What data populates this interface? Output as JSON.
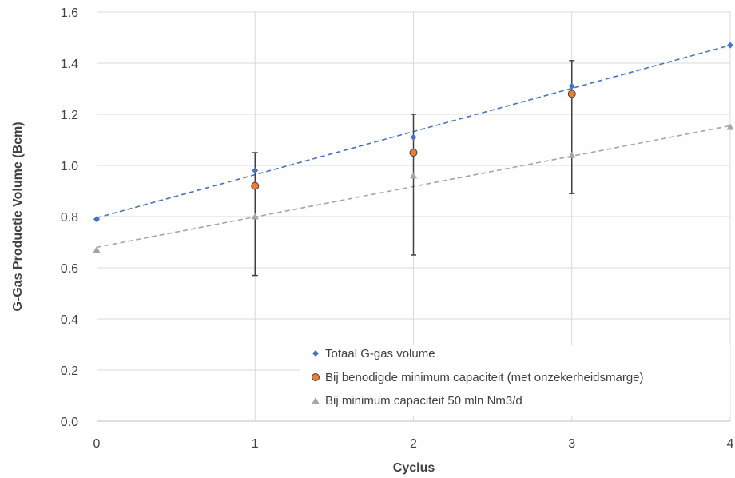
{
  "chart_data": {
    "type": "scatter",
    "title": "",
    "xlabel": "Cyclus",
    "ylabel": "G-Gas Productie Volume (Bcm)",
    "xlim": [
      0,
      4
    ],
    "ylim": [
      0,
      1.6
    ],
    "x_ticks": [
      0,
      1,
      2,
      3,
      4
    ],
    "y_ticks": [
      0.0,
      0.2,
      0.4,
      0.6,
      0.8,
      1.0,
      1.2,
      1.4,
      1.6
    ],
    "x_tick_labels": [
      "0",
      "1",
      "2",
      "3",
      "4"
    ],
    "y_tick_labels": [
      "0.0",
      "0.2",
      "0.4",
      "0.6",
      "0.8",
      "1.0",
      "1.2",
      "1.4",
      "1.6"
    ],
    "grid": true,
    "legend_position": "bottom-right",
    "series": [
      {
        "name": "Totaal G-gas volume",
        "marker": "diamond",
        "color": "#4472c4",
        "x": [
          0,
          1,
          2,
          3,
          4
        ],
        "y": [
          0.79,
          0.98,
          1.11,
          1.31,
          1.47
        ],
        "trendline": {
          "color": "#4472c4",
          "dash": true,
          "from": [
            0,
            0.795
          ],
          "to": [
            4,
            1.47
          ]
        }
      },
      {
        "name": "Bij benodigde minimum capaciteit (met onzekerheidsmarge)",
        "marker": "circle",
        "color": "#ed7d31",
        "x": [
          1,
          2,
          3
        ],
        "y": [
          0.92,
          1.05,
          1.28
        ],
        "error_bars": [
          {
            "low": 0.57,
            "high": 1.05
          },
          {
            "low": 0.65,
            "high": 1.2
          },
          {
            "low": 0.89,
            "high": 1.41
          }
        ]
      },
      {
        "name": "Bij minimum capaciteit 50 mln Nm3/d",
        "marker": "triangle",
        "color": "#a5a5a5",
        "x": [
          0,
          1,
          2,
          3,
          4
        ],
        "y": [
          0.67,
          0.8,
          0.96,
          1.04,
          1.15
        ],
        "trendline": {
          "color": "#a5a5a5",
          "dash": true,
          "from": [
            0,
            0.68
          ],
          "to": [
            4,
            1.155
          ]
        }
      }
    ]
  }
}
